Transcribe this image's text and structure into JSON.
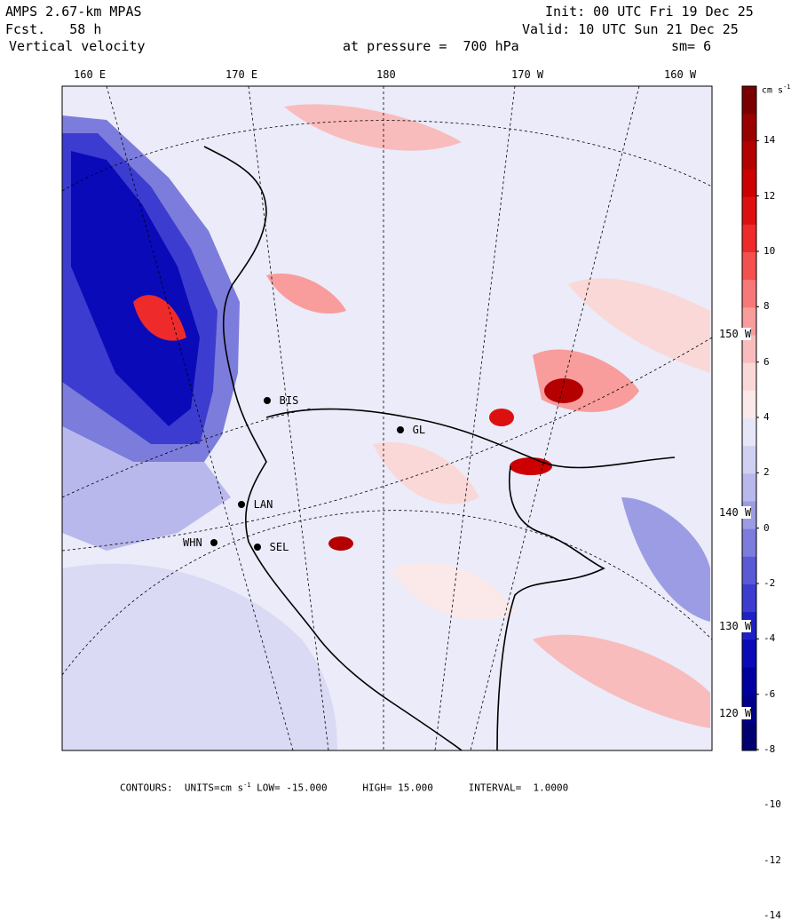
{
  "header": {
    "model": "AMPS 2.67-km MPAS",
    "forecast": "Fcst.   58 h",
    "field": "Vertical velocity",
    "level": "at pressure =  700 hPa",
    "init": "Init: 00 UTC Fri 19 Dec 25",
    "valid": "Valid: 10 UTC Sun 21 Dec 25",
    "smoothing": "sm= 6"
  },
  "lon_labels": [
    "160 E",
    "170 E",
    "180",
    "170 W",
    "160 W"
  ],
  "lat_labels": [
    "150 W",
    "140 W",
    "130 W",
    "120 W"
  ],
  "stations": [
    {
      "id": "BIS"
    },
    {
      "id": "GL"
    },
    {
      "id": "LAN"
    },
    {
      "id": "WHN"
    },
    {
      "id": "SEL"
    }
  ],
  "colorbar": {
    "unit": "cm s",
    "unit_exp": "-1",
    "ticks": [
      "14",
      "12",
      "10",
      "8",
      "6",
      "4",
      "2",
      "0",
      "-2",
      "-4",
      "-6",
      "-8",
      "-10",
      "-12",
      "-14"
    ],
    "colors": [
      "#7a0000",
      "#9a0000",
      "#b40000",
      "#cc0000",
      "#dd1010",
      "#ee2a2a",
      "#f55050",
      "#f77878",
      "#f89c9c",
      "#f9bcbc",
      "#fad8d8",
      "#fbe9e9",
      "#e6e6f8",
      "#d0d0f2",
      "#b8b8ec",
      "#9c9ce4",
      "#7c7cdc",
      "#5a5ad6",
      "#3c3cd0",
      "#2020c8",
      "#0a0ab8",
      "#0000a0",
      "#00008a",
      "#000070"
    ]
  },
  "footer": {
    "label": "CONTOURS:",
    "units": "UNITS=cm s",
    "units_exp": "-1",
    "low": "LOW= -15.000",
    "high": "HIGH= 15.000",
    "interval": "INTERVAL=  1.0000"
  }
}
